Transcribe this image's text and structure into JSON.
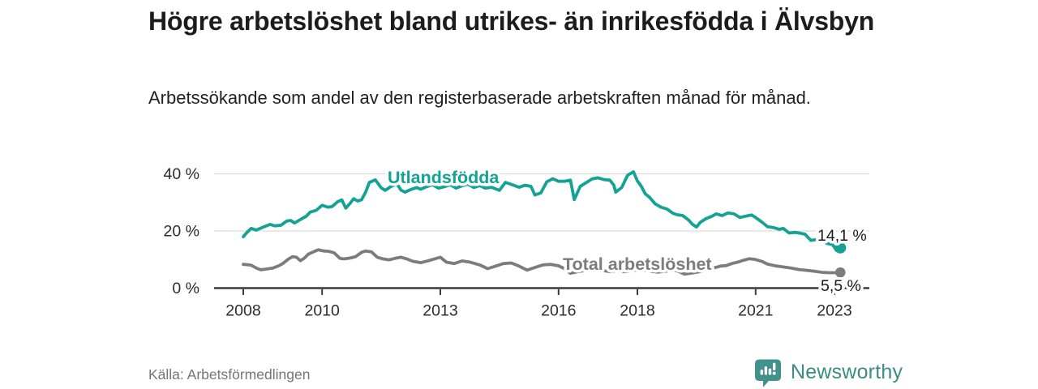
{
  "header": {
    "title": "Högre arbetslöshet bland utrikes- än inrikesfödda i Älvsbyn",
    "subtitle": "Arbetssökande som andel av den registerbaserade arbetskraften månad för månad."
  },
  "footer": {
    "source": "Källa: Arbetsförmedlingen",
    "brand": "Newsworthy"
  },
  "colors": {
    "accent_teal": "#14a295",
    "line_gray": "#7c7c7c",
    "grid": "#dcdcdc",
    "axis": "#3c3c3c",
    "tick_text": "#2d2d2d",
    "end_label_text": "#1a1a1a",
    "brand_teal": "#3a8c85"
  },
  "chart_data": {
    "type": "line",
    "x_axis": {
      "ticks": [
        2008,
        2010,
        2013,
        2016,
        2018,
        2021,
        2023
      ],
      "tick_labels": [
        "2008",
        "2010",
        "2013",
        "2016",
        "2018",
        "2021",
        "2023"
      ],
      "range": [
        2007.25,
        2023.9
      ],
      "grid": false
    },
    "y_axis": {
      "ticks": [
        0,
        20,
        40
      ],
      "tick_labels": [
        "0 %",
        "20 %",
        "40 %"
      ],
      "range": [
        0,
        45
      ],
      "unit": "%",
      "grid": true
    },
    "legend_position": "inline-labels",
    "series": [
      {
        "name": "Utlandsfödda",
        "color": "#14a295",
        "end_value": 14.1,
        "end_label": "14,1 %",
        "points": [
          [
            2008.0,
            18.0
          ],
          [
            2008.08,
            19.3
          ],
          [
            2008.2,
            20.9
          ],
          [
            2008.33,
            20.3
          ],
          [
            2008.5,
            21.3
          ],
          [
            2008.68,
            22.3
          ],
          [
            2008.8,
            21.8
          ],
          [
            2008.96,
            22.0
          ],
          [
            2009.1,
            23.5
          ],
          [
            2009.2,
            23.7
          ],
          [
            2009.3,
            22.8
          ],
          [
            2009.45,
            24.0
          ],
          [
            2009.6,
            25.2
          ],
          [
            2009.7,
            26.6
          ],
          [
            2009.85,
            27.2
          ],
          [
            2010.0,
            29.0
          ],
          [
            2010.15,
            28.3
          ],
          [
            2010.26,
            28.6
          ],
          [
            2010.4,
            30.3
          ],
          [
            2010.5,
            30.9
          ],
          [
            2010.6,
            28.0
          ],
          [
            2010.7,
            29.5
          ],
          [
            2010.8,
            31.3
          ],
          [
            2010.9,
            30.5
          ],
          [
            2011.0,
            30.9
          ],
          [
            2011.1,
            33.5
          ],
          [
            2011.2,
            37.0
          ],
          [
            2011.35,
            37.9
          ],
          [
            2011.5,
            35.1
          ],
          [
            2011.6,
            34.2
          ],
          [
            2011.75,
            35.6
          ],
          [
            2011.9,
            36.5
          ],
          [
            2012.0,
            34.3
          ],
          [
            2012.1,
            33.6
          ],
          [
            2012.25,
            34.5
          ],
          [
            2012.4,
            35.2
          ],
          [
            2012.5,
            34.6
          ],
          [
            2012.65,
            35.5
          ],
          [
            2012.8,
            36.2
          ],
          [
            2012.95,
            35.0
          ],
          [
            2013.1,
            35.5
          ],
          [
            2013.25,
            36.2
          ],
          [
            2013.4,
            35.0
          ],
          [
            2013.55,
            35.8
          ],
          [
            2013.7,
            36.4
          ],
          [
            2013.85,
            35.2
          ],
          [
            2014.0,
            35.9
          ],
          [
            2014.14,
            35.0
          ],
          [
            2014.3,
            35.3
          ],
          [
            2014.5,
            34.2
          ],
          [
            2014.65,
            37.0
          ],
          [
            2014.8,
            36.3
          ],
          [
            2015.0,
            35.3
          ],
          [
            2015.15,
            36.0
          ],
          [
            2015.3,
            35.6
          ],
          [
            2015.4,
            32.6
          ],
          [
            2015.55,
            33.3
          ],
          [
            2015.7,
            37.2
          ],
          [
            2015.85,
            38.3
          ],
          [
            2016.0,
            37.4
          ],
          [
            2016.15,
            37.4
          ],
          [
            2016.3,
            37.8
          ],
          [
            2016.4,
            31.0
          ],
          [
            2016.55,
            35.6
          ],
          [
            2016.7,
            36.9
          ],
          [
            2016.85,
            38.2
          ],
          [
            2017.0,
            38.6
          ],
          [
            2017.15,
            38.0
          ],
          [
            2017.3,
            37.8
          ],
          [
            2017.4,
            36.1
          ],
          [
            2017.45,
            33.6
          ],
          [
            2017.6,
            35.2
          ],
          [
            2017.75,
            39.5
          ],
          [
            2017.9,
            40.7
          ],
          [
            2018.0,
            37.5
          ],
          [
            2018.1,
            35.6
          ],
          [
            2018.2,
            33.0
          ],
          [
            2018.3,
            31.9
          ],
          [
            2018.45,
            29.5
          ],
          [
            2018.6,
            28.3
          ],
          [
            2018.75,
            27.7
          ],
          [
            2018.9,
            26.2
          ],
          [
            2019.0,
            25.7
          ],
          [
            2019.15,
            25.4
          ],
          [
            2019.3,
            23.8
          ],
          [
            2019.4,
            22.3
          ],
          [
            2019.5,
            21.4
          ],
          [
            2019.6,
            23.1
          ],
          [
            2019.75,
            24.4
          ],
          [
            2019.9,
            25.2
          ],
          [
            2020.0,
            26.0
          ],
          [
            2020.15,
            25.4
          ],
          [
            2020.3,
            26.3
          ],
          [
            2020.45,
            26.0
          ],
          [
            2020.6,
            24.7
          ],
          [
            2020.75,
            25.2
          ],
          [
            2020.9,
            25.6
          ],
          [
            2021.0,
            24.7
          ],
          [
            2021.15,
            23.2
          ],
          [
            2021.3,
            21.5
          ],
          [
            2021.45,
            21.2
          ],
          [
            2021.6,
            20.6
          ],
          [
            2021.7,
            20.9
          ],
          [
            2021.85,
            19.3
          ],
          [
            2022.0,
            19.5
          ],
          [
            2022.1,
            19.3
          ],
          [
            2022.25,
            18.9
          ],
          [
            2022.4,
            16.7
          ],
          [
            2022.55,
            17.0
          ],
          [
            2022.7,
            17.1
          ],
          [
            2022.8,
            15.7
          ],
          [
            2022.95,
            15.3
          ],
          [
            2023.05,
            13.2
          ],
          [
            2023.15,
            14.1
          ]
        ]
      },
      {
        "name": "Total arbetslöshet",
        "color": "#7c7c7c",
        "end_value": 5.5,
        "end_label": "5,5 %",
        "points": [
          [
            2008.0,
            8.3
          ],
          [
            2008.1,
            8.2
          ],
          [
            2008.2,
            8.0
          ],
          [
            2008.35,
            6.9
          ],
          [
            2008.45,
            6.4
          ],
          [
            2008.6,
            6.7
          ],
          [
            2008.75,
            7.0
          ],
          [
            2008.9,
            7.8
          ],
          [
            2009.0,
            8.6
          ],
          [
            2009.15,
            10.2
          ],
          [
            2009.25,
            11.0
          ],
          [
            2009.35,
            10.8
          ],
          [
            2009.45,
            9.6
          ],
          [
            2009.55,
            10.5
          ],
          [
            2009.65,
            11.9
          ],
          [
            2009.75,
            12.5
          ],
          [
            2009.9,
            13.4
          ],
          [
            2010.05,
            13.0
          ],
          [
            2010.15,
            12.9
          ],
          [
            2010.3,
            12.4
          ],
          [
            2010.45,
            10.4
          ],
          [
            2010.55,
            10.2
          ],
          [
            2010.7,
            10.5
          ],
          [
            2010.85,
            11.0
          ],
          [
            2011.0,
            12.5
          ],
          [
            2011.1,
            13.0
          ],
          [
            2011.25,
            12.7
          ],
          [
            2011.4,
            10.8
          ],
          [
            2011.55,
            10.2
          ],
          [
            2011.7,
            9.9
          ],
          [
            2011.85,
            10.4
          ],
          [
            2012.0,
            10.8
          ],
          [
            2012.15,
            10.2
          ],
          [
            2012.3,
            9.4
          ],
          [
            2012.5,
            8.9
          ],
          [
            2012.7,
            9.6
          ],
          [
            2012.9,
            10.4
          ],
          [
            2013.0,
            10.8
          ],
          [
            2013.15,
            9.1
          ],
          [
            2013.35,
            8.6
          ],
          [
            2013.55,
            9.5
          ],
          [
            2013.75,
            9.1
          ],
          [
            2014.0,
            8.1
          ],
          [
            2014.2,
            6.8
          ],
          [
            2014.4,
            7.7
          ],
          [
            2014.6,
            8.6
          ],
          [
            2014.8,
            8.8
          ],
          [
            2015.0,
            7.7
          ],
          [
            2015.2,
            6.3
          ],
          [
            2015.4,
            7.2
          ],
          [
            2015.6,
            8.1
          ],
          [
            2015.8,
            8.3
          ],
          [
            2016.0,
            7.8
          ],
          [
            2016.15,
            6.8
          ],
          [
            2016.3,
            5.2
          ],
          [
            2016.5,
            5.8
          ],
          [
            2016.7,
            6.2
          ],
          [
            2016.9,
            6.6
          ],
          [
            2017.1,
            6.2
          ],
          [
            2017.3,
            5.8
          ],
          [
            2017.5,
            6.1
          ],
          [
            2017.7,
            5.7
          ],
          [
            2017.9,
            6.2
          ],
          [
            2018.1,
            6.4
          ],
          [
            2018.3,
            6.0
          ],
          [
            2018.5,
            5.6
          ],
          [
            2018.7,
            5.9
          ],
          [
            2018.9,
            6.3
          ],
          [
            2019.0,
            6.1
          ],
          [
            2019.2,
            4.9
          ],
          [
            2019.4,
            5.3
          ],
          [
            2019.6,
            5.8
          ],
          [
            2019.8,
            6.7
          ],
          [
            2020.0,
            7.3
          ],
          [
            2020.1,
            7.7
          ],
          [
            2020.25,
            7.9
          ],
          [
            2020.4,
            8.6
          ],
          [
            2020.55,
            9.1
          ],
          [
            2020.7,
            9.8
          ],
          [
            2020.85,
            10.3
          ],
          [
            2021.0,
            10.0
          ],
          [
            2021.15,
            9.4
          ],
          [
            2021.3,
            8.4
          ],
          [
            2021.5,
            7.8
          ],
          [
            2021.7,
            7.4
          ],
          [
            2021.9,
            7.0
          ],
          [
            2022.1,
            6.5
          ],
          [
            2022.3,
            6.2
          ],
          [
            2022.5,
            5.9
          ],
          [
            2022.7,
            5.5
          ],
          [
            2022.85,
            5.4
          ],
          [
            2023.0,
            5.4
          ],
          [
            2023.15,
            5.5
          ]
        ]
      }
    ]
  }
}
